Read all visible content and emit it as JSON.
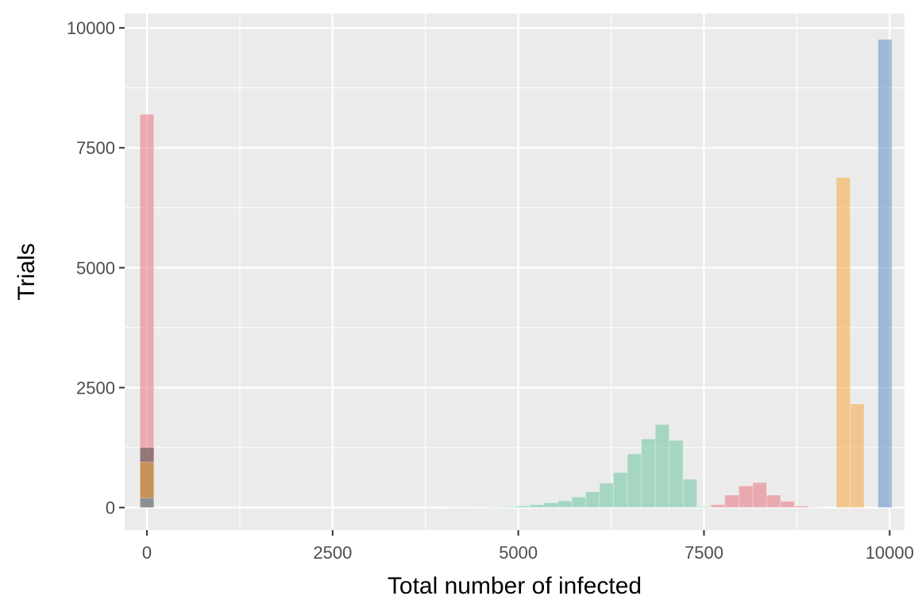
{
  "chart_data": {
    "type": "bar",
    "title": "",
    "xlabel": "Total number of infected",
    "ylabel": "Trials",
    "xlim": [
      -300,
      10200
    ],
    "ylim": [
      -470,
      10300
    ],
    "x_ticks": [
      0,
      2500,
      5000,
      7500,
      10000
    ],
    "x_tick_labels": [
      "0",
      "2500",
      "5000",
      "7500",
      "10000"
    ],
    "y_ticks": [
      0,
      2500,
      5000,
      7500,
      10000
    ],
    "y_tick_labels": [
      "0",
      "2500",
      "5000",
      "7500",
      "10000"
    ],
    "grid": true,
    "bin_width": 187.5,
    "bar_opacity": 0.55,
    "panel_background": "#ebebeb",
    "grid_color": "#ffffff",
    "series": [
      {
        "color": "#e5747f",
        "bars": [
          {
            "x": 0,
            "y": 8200
          },
          {
            "x": 7687.5,
            "y": 60
          },
          {
            "x": 7875,
            "y": 260
          },
          {
            "x": 8062.5,
            "y": 450
          },
          {
            "x": 8250,
            "y": 520
          },
          {
            "x": 8437.5,
            "y": 260
          },
          {
            "x": 8625,
            "y": 130
          },
          {
            "x": 8812.5,
            "y": 30
          },
          {
            "x": 9000,
            "y": 8
          }
        ]
      },
      {
        "color": "#4a4a4a",
        "bars": [
          {
            "x": 0,
            "y": 1250
          }
        ]
      },
      {
        "color": "#f5a742",
        "bars": [
          {
            "x": 0,
            "y": 950
          },
          {
            "x": 9375,
            "y": 6880
          },
          {
            "x": 9562.5,
            "y": 2160
          }
        ]
      },
      {
        "color": "#5a8fc4",
        "bars": [
          {
            "x": 0,
            "y": 200
          },
          {
            "x": 9937.5,
            "y": 9760
          }
        ]
      },
      {
        "color": "#6cc4a0",
        "bars": [
          {
            "x": 4125,
            "y": 2
          },
          {
            "x": 4312.5,
            "y": 4
          },
          {
            "x": 4500,
            "y": 6
          },
          {
            "x": 4687.5,
            "y": 10
          },
          {
            "x": 4875,
            "y": 18
          },
          {
            "x": 5062.5,
            "y": 35
          },
          {
            "x": 5250,
            "y": 60
          },
          {
            "x": 5437.5,
            "y": 100
          },
          {
            "x": 5625,
            "y": 140
          },
          {
            "x": 5812.5,
            "y": 220
          },
          {
            "x": 6000,
            "y": 330
          },
          {
            "x": 6187.5,
            "y": 510
          },
          {
            "x": 6375,
            "y": 730
          },
          {
            "x": 6562.5,
            "y": 1120
          },
          {
            "x": 6750,
            "y": 1430
          },
          {
            "x": 6937.5,
            "y": 1730
          },
          {
            "x": 7125,
            "y": 1400
          },
          {
            "x": 7312.5,
            "y": 590
          },
          {
            "x": 7500,
            "y": 20
          }
        ]
      }
    ]
  }
}
